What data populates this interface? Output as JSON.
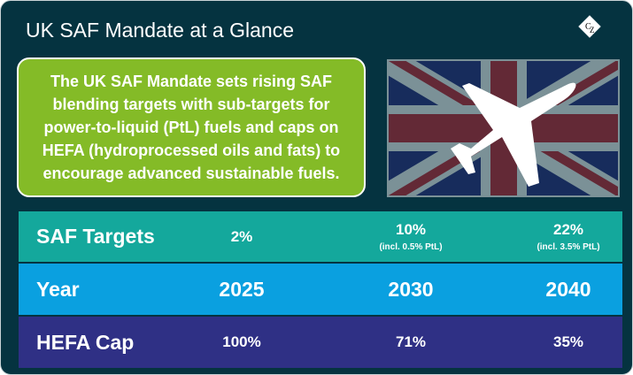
{
  "title": "UK SAF Mandate at a Glance",
  "logo": "CZ",
  "summary": "The UK SAF Mandate sets rising SAF blending targets with sub-targets for power-to-liquid (PtL) fuels and caps on HEFA (hydroprocessed oils and fats) to encourage advanced sustainable fuels.",
  "colors": {
    "background": "#053340",
    "green": "#84bb27",
    "teal": "#14a89c",
    "blue": "#0aa0e0",
    "navy": "#2f3085"
  },
  "table": {
    "saf_targets": {
      "label": "SAF Targets",
      "values": [
        {
          "value": "2%"
        },
        {
          "value": "10%",
          "note": "(incl. 0.5% PtL)"
        },
        {
          "value": "22%",
          "note": "(incl. 3.5% PtL)"
        }
      ]
    },
    "year": {
      "label": "Year",
      "values": [
        "2025",
        "2030",
        "2040"
      ]
    },
    "hefa_cap": {
      "label": "HEFA Cap",
      "values": [
        "100%",
        "71%",
        "35%"
      ]
    }
  }
}
